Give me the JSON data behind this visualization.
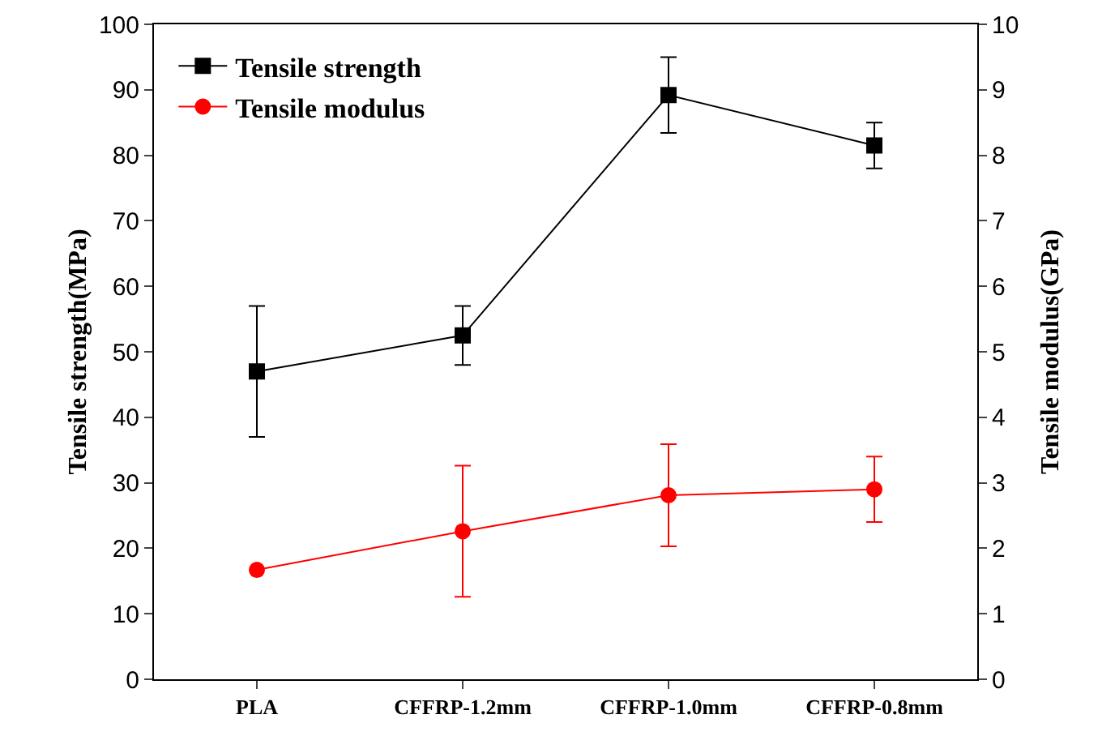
{
  "chart_data": {
    "type": "line",
    "ylabel": "Tensile strength(MPa)",
    "y2label": "Tensile modulus(GPa)",
    "categories": [
      "PLA",
      "CFFRP-1.2mm",
      "CFFRP-1.0mm",
      "CFFRP-0.8mm"
    ],
    "series": [
      {
        "name": "Tensile strength",
        "color": "#000000",
        "marker": "square",
        "values": [
          47,
          52.5,
          89.2,
          81.5
        ],
        "errors": [
          10,
          4.5,
          5.8,
          3.5
        ]
      },
      {
        "name": "Tensile modulus",
        "color": "#ff0000",
        "marker": "circle",
        "axis": "y2",
        "values": [
          1.67,
          2.26,
          2.81,
          2.9
        ],
        "errors": [
          null,
          1.0,
          0.78,
          0.5
        ]
      }
    ],
    "ylim": [
      0,
      100
    ],
    "yticks": [
      0,
      10,
      20,
      30,
      40,
      50,
      60,
      70,
      80,
      90,
      100
    ],
    "y2lim": [
      0,
      10
    ],
    "y2ticks": [
      0,
      1,
      2,
      3,
      4,
      5,
      6,
      7,
      8,
      9,
      10
    ],
    "grid": false,
    "legend": "top left"
  }
}
